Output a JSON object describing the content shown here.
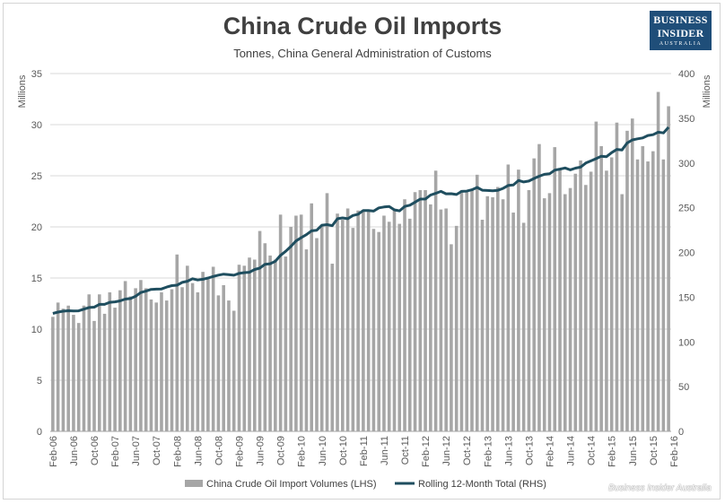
{
  "chart_data": {
    "type": "bar",
    "title": "China Crude Oil Imports",
    "subtitle": "Tonnes, China General Administration of Customs",
    "left_axis": {
      "label": "Millions",
      "min": 0,
      "max": 35,
      "ticks": [
        "0",
        "5",
        "10",
        "15",
        "20",
        "25",
        "30",
        "35"
      ]
    },
    "right_axis": {
      "label": "Millions",
      "min": 0,
      "max": 400,
      "ticks": [
        "0",
        "50",
        "100",
        "150",
        "200",
        "250",
        "300",
        "350",
        "400"
      ]
    },
    "x_tick_labels": [
      "Feb-06",
      "Jun-06",
      "Oct-06",
      "Feb-07",
      "Jun-07",
      "Oct-07",
      "Feb-08",
      "Jun-08",
      "Oct-08",
      "Feb-09",
      "Jun-09",
      "Oct-09",
      "Feb-10",
      "Jun-10",
      "Oct-10",
      "Feb-11",
      "Jun-11",
      "Oct-11",
      "Feb-12",
      "Jun-12",
      "Oct-12",
      "Feb-13",
      "Jun-13",
      "Oct-13",
      "Feb-14",
      "Jun-14",
      "Oct-14",
      "Feb-15",
      "Jun-15",
      "Oct-15",
      "Feb-16"
    ],
    "grid": true,
    "legend_position": "bottom",
    "series": [
      {
        "name": "China Crude Oil Import Volumes (LHS)",
        "type": "bar",
        "axis": "left",
        "color": "#a6a6a6",
        "values": [
          11.2,
          12.6,
          12.0,
          12.3,
          11.4,
          10.6,
          12.3,
          13.4,
          10.8,
          13.4,
          11.5,
          13.6,
          12.1,
          13.8,
          14.7,
          13.2,
          14.0,
          14.8,
          14.0,
          12.9,
          12.6,
          13.6,
          12.8,
          13.9,
          17.3,
          14.1,
          16.2,
          14.5,
          13.6,
          15.6,
          14.9,
          16.1,
          13.3,
          14.3,
          12.8,
          11.8,
          16.3,
          16.2,
          17.0,
          16.8,
          19.6,
          18.4,
          17.2,
          16.8,
          21.2,
          17.1,
          20.0,
          21.1,
          21.2,
          17.8,
          22.3,
          18.9,
          20.2,
          23.3,
          16.4,
          21.3,
          20.7,
          21.8,
          19.9,
          21.6,
          21.5,
          21.7,
          19.8,
          19.5,
          21.1,
          20.5,
          21.7,
          20.3,
          22.7,
          20.8,
          23.4,
          23.6,
          23.6,
          22.2,
          25.5,
          21.7,
          21.8,
          18.3,
          20.1,
          23.6,
          23.4,
          23.6,
          25.1,
          20.7,
          23.0,
          22.9,
          23.9,
          22.7,
          26.1,
          21.4,
          25.6,
          20.4,
          23.6,
          26.7,
          28.1,
          22.8,
          23.3,
          27.8,
          25.7,
          23.2,
          23.8,
          25.2,
          26.5,
          24.1,
          25.4,
          30.3,
          27.9,
          25.5,
          26.8,
          30.2,
          23.2,
          29.4,
          30.6,
          26.6,
          27.9,
          26.4,
          27.4,
          33.2,
          26.6,
          31.8
        ]
      },
      {
        "name": "Rolling 12-Month Total (RHS)",
        "type": "line",
        "axis": "right",
        "color": "#1f4e5f",
        "values": [
          131.8,
          133.3,
          134.3,
          134.8,
          134.5,
          134.7,
          136.6,
          138.4,
          138.8,
          142.0,
          142.0,
          144.3,
          144.8,
          145.9,
          147.9,
          148.5,
          151.0,
          155.2,
          156.8,
          158.7,
          159.0,
          159.2,
          161.3,
          162.9,
          163.4,
          166.5,
          167.8,
          170.6,
          169.2,
          170.0,
          171.4,
          173.1,
          174.6,
          175.7,
          175.2,
          174.5,
          176.6,
          177.4,
          177.8,
          181.0,
          182.5,
          186.8,
          187.4,
          190.2,
          196.7,
          201.3,
          206.6,
          212.8,
          216.5,
          219.8,
          224.2,
          224.9,
          230.5,
          231.1,
          230.0,
          237.7,
          238.6,
          237.7,
          241.3,
          242.7,
          246.9,
          246.8,
          246.2,
          249.8,
          250.8,
          251.4,
          247.6,
          246.5,
          251.4,
          252.8,
          256.2,
          259.6,
          259.7,
          264.2,
          266.1,
          268.3,
          265.6,
          265.7,
          264.8,
          268.3,
          268.6,
          270.1,
          272.7,
          269.6,
          269.3,
          269.0,
          269.5,
          271.6,
          274.9,
          275.5,
          280.5,
          278.8,
          279.8,
          282.7,
          285.2,
          287.3,
          287.9,
          292.0,
          293.1,
          294.4,
          292.3,
          294.2,
          295.4,
          300.0,
          302.4,
          304.9,
          307.6,
          307.1,
          311.6,
          315.2,
          314.6,
          322.4,
          325.8,
          327.0,
          328.0,
          330.7,
          331.6,
          334.4,
          333.6,
          339.9
        ]
      }
    ],
    "legend": {
      "bar_label": "China Crude Oil Import Volumes (LHS)",
      "line_label": "Rolling 12-Month Total (RHS)"
    }
  },
  "branding": {
    "logo_line1": "BUSINESS",
    "logo_line2": "INSIDER",
    "logo_line3": "AUSTRALIA",
    "logo_color": "#1f4e79",
    "watermark": "Business Insider Australia"
  }
}
